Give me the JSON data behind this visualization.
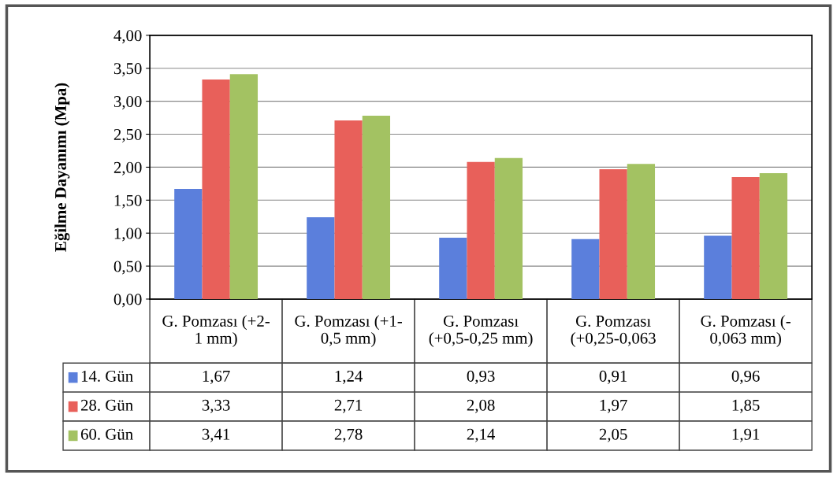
{
  "chart_data": {
    "type": "bar",
    "ylabel": "Eğilme Dayanımı (Mpa)",
    "categories": [
      "G. Pomzası (+2-\n1 mm)",
      "G. Pomzası (+1-\n0,5 mm)",
      "G. Pomzası\n(+0,5-0,25 mm)",
      "G. Pomzası\n(+0,25-0,063",
      "G. Pomzası (-\n0,063 mm)"
    ],
    "series": [
      {
        "name": "14. Gün",
        "color": "#5b7fdc",
        "values": [
          1.67,
          1.24,
          0.93,
          0.91,
          0.96
        ],
        "value_labels": [
          "1,67",
          "1,24",
          "0,93",
          "0,91",
          "0,96"
        ]
      },
      {
        "name": "28. Gün",
        "color": "#e8605a",
        "values": [
          3.33,
          2.71,
          2.08,
          1.97,
          1.85
        ],
        "value_labels": [
          "3,33",
          "2,71",
          "2,08",
          "1,97",
          "1,85"
        ]
      },
      {
        "name": "60. Gün",
        "color": "#a3c262",
        "values": [
          3.41,
          2.78,
          2.14,
          2.05,
          1.91
        ],
        "value_labels": [
          "3,41",
          "2,78",
          "2,14",
          "2,05",
          "1,91"
        ]
      }
    ],
    "ylim": [
      0,
      4
    ],
    "yticks": [
      {
        "value": 0,
        "label": "0,00"
      },
      {
        "value": 0.5,
        "label": "0,50"
      },
      {
        "value": 1,
        "label": "1,00"
      },
      {
        "value": 1.5,
        "label": "1,50"
      },
      {
        "value": 2,
        "label": "2,00"
      },
      {
        "value": 2.5,
        "label": "2,50"
      },
      {
        "value": 3,
        "label": "3,00"
      },
      {
        "value": 3.5,
        "label": "3,50"
      },
      {
        "value": 4,
        "label": "4,00"
      }
    ],
    "grid": "y",
    "legend": "bottom"
  }
}
